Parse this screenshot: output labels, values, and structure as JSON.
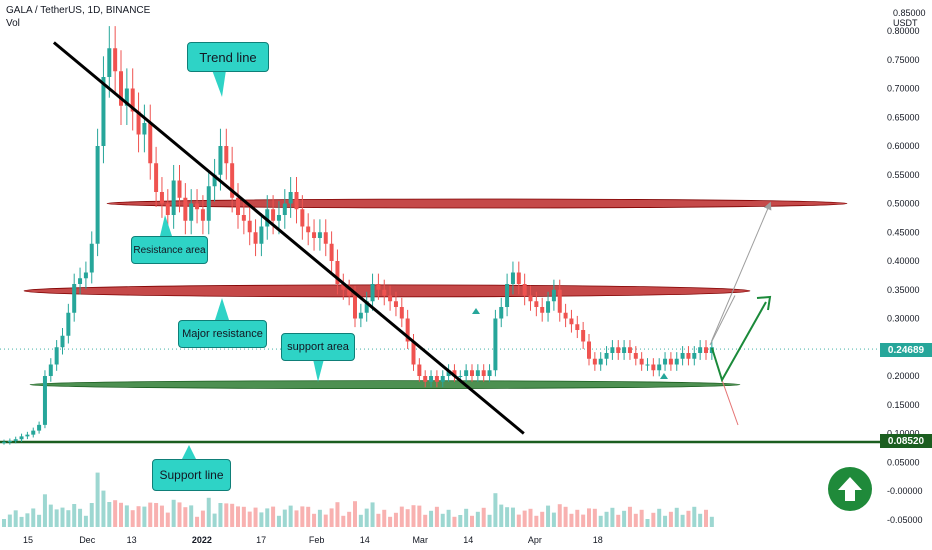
{
  "header": {
    "symbol_line": "GALA / TetherUS, 1D, BINANCE",
    "volume_label": "Vol"
  },
  "axis_unit": {
    "top": "0.85000",
    "currency": "USDT"
  },
  "price_tags": {
    "last_price": "0.24689",
    "support_price": "0.08520"
  },
  "annotations": {
    "trend_line": "Trend line",
    "resistance_area": "Resistance area",
    "major_resistance": "Major resistance",
    "support_area": "support area",
    "support_line": "Support line"
  },
  "colors": {
    "bull": "#26a69a",
    "bear": "#ef5350",
    "resistance_band": "#b71c1c",
    "support_band": "#2e7d32",
    "callout": "#2ed3c6",
    "trend": "#000000"
  },
  "chart_data": {
    "type": "candlestick",
    "y_axis": {
      "ticks": [
        "0.80000",
        "0.75000",
        "0.70000",
        "0.65000",
        "0.60000",
        "0.55000",
        "0.50000",
        "0.45000",
        "0.40000",
        "0.35000",
        "0.30000",
        "0.25000",
        "0.20000",
        "0.15000",
        "0.10000",
        "0.05000",
        "-0.00000",
        "-0.05000"
      ],
      "tick_values": [
        0.8,
        0.75,
        0.7,
        0.65,
        0.6,
        0.55,
        0.5,
        0.45,
        0.4,
        0.35,
        0.3,
        0.25,
        0.2,
        0.15,
        0.1,
        0.05,
        0.0,
        -0.05
      ]
    },
    "x_axis": {
      "ticks": [
        "15",
        "Dec",
        "13",
        "2022",
        "17",
        "Feb",
        "14",
        "Mar",
        "14",
        "Apr",
        "18"
      ],
      "tick_dates": [
        "2021-11-15",
        "2021-12-01",
        "2021-12-13",
        "2022-01-01",
        "2022-01-17",
        "2022-02-01",
        "2022-02-14",
        "2022-03-01",
        "2022-03-14",
        "2022-04-01",
        "2022-04-18"
      ]
    },
    "candles_close": [
      0.085,
      0.087,
      0.09,
      0.095,
      0.098,
      0.105,
      0.115,
      0.2,
      0.22,
      0.25,
      0.27,
      0.31,
      0.36,
      0.37,
      0.38,
      0.43,
      0.6,
      0.72,
      0.77,
      0.73,
      0.67,
      0.7,
      0.66,
      0.62,
      0.64,
      0.57,
      0.52,
      0.5,
      0.48,
      0.54,
      0.51,
      0.47,
      0.5,
      0.49,
      0.47,
      0.53,
      0.55,
      0.6,
      0.57,
      0.51,
      0.48,
      0.47,
      0.45,
      0.43,
      0.46,
      0.49,
      0.47,
      0.48,
      0.5,
      0.52,
      0.49,
      0.46,
      0.45,
      0.44,
      0.45,
      0.43,
      0.4,
      0.36,
      0.35,
      0.34,
      0.3,
      0.31,
      0.33,
      0.36,
      0.35,
      0.34,
      0.33,
      0.32,
      0.3,
      0.26,
      0.22,
      0.2,
      0.19,
      0.2,
      0.19,
      0.2,
      0.21,
      0.2,
      0.2,
      0.21,
      0.2,
      0.21,
      0.2,
      0.21,
      0.3,
      0.32,
      0.36,
      0.38,
      0.36,
      0.34,
      0.33,
      0.32,
      0.31,
      0.33,
      0.35,
      0.31,
      0.3,
      0.29,
      0.28,
      0.26,
      0.23,
      0.22,
      0.23,
      0.24,
      0.25,
      0.24,
      0.25,
      0.24,
      0.23,
      0.22,
      0.22,
      0.21,
      0.22,
      0.23,
      0.22,
      0.23,
      0.24,
      0.23,
      0.24,
      0.25,
      0.24,
      0.25
    ],
    "last_price": 0.24689,
    "support_line_value": 0.0852,
    "resistance_zones": [
      0.5,
      0.348
    ],
    "support_zone": 0.185,
    "trend_line": {
      "from": [
        "2021-11-22",
        0.78
      ],
      "to": [
        "2022-03-29",
        0.1
      ]
    },
    "projections": [
      "up to 0.50000",
      "up to 0.34000",
      "down to 0.13000"
    ]
  }
}
